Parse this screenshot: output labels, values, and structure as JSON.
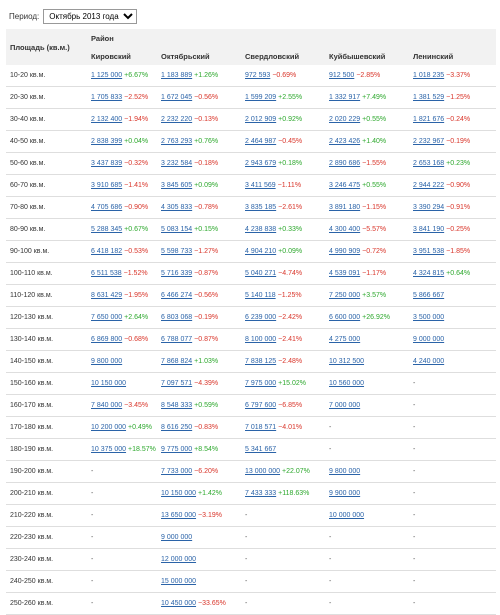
{
  "period": {
    "label": "Период:",
    "selected": "Октябрь 2013 года"
  },
  "header": {
    "area_label": "Площадь (кв.м.)",
    "district_label": "Район",
    "districts": [
      "Кировский",
      "Октябрьский",
      "Свердловский",
      "Куйбышевский",
      "Ленинский"
    ]
  },
  "rows": [
    {
      "area": "10-20 кв.м.",
      "cells": [
        {
          "p": "1 125 000",
          "c": "+6.67%",
          "d": "up"
        },
        {
          "p": "1 183 889",
          "c": "+1.26%",
          "d": "up"
        },
        {
          "p": "972 593",
          "c": "−0.69%",
          "d": "down"
        },
        {
          "p": "912 500",
          "c": "−2.85%",
          "d": "down"
        },
        {
          "p": "1 018 235",
          "c": "−3.37%",
          "d": "down"
        }
      ]
    },
    {
      "area": "20-30 кв.м.",
      "cells": [
        {
          "p": "1 705 833",
          "c": "−2.52%",
          "d": "down"
        },
        {
          "p": "1 672 045",
          "c": "−0.56%",
          "d": "down"
        },
        {
          "p": "1 599 209",
          "c": "+2.55%",
          "d": "up"
        },
        {
          "p": "1 332 917",
          "c": "+7.49%",
          "d": "up"
        },
        {
          "p": "1 381 529",
          "c": "−1.25%",
          "d": "down"
        }
      ]
    },
    {
      "area": "30-40 кв.м.",
      "cells": [
        {
          "p": "2 132 400",
          "c": "−1.94%",
          "d": "down"
        },
        {
          "p": "2 232 220",
          "c": "−0.13%",
          "d": "down"
        },
        {
          "p": "2 012 909",
          "c": "+0.92%",
          "d": "up"
        },
        {
          "p": "2 020 229",
          "c": "+0.55%",
          "d": "up"
        },
        {
          "p": "1 821 676",
          "c": "−0.24%",
          "d": "down"
        }
      ]
    },
    {
      "area": "40-50 кв.м.",
      "cells": [
        {
          "p": "2 838 399",
          "c": "+0.04%",
          "d": "up"
        },
        {
          "p": "2 763 293",
          "c": "+0.76%",
          "d": "up"
        },
        {
          "p": "2 464 987",
          "c": "−0.45%",
          "d": "down"
        },
        {
          "p": "2 423 426",
          "c": "+1.40%",
          "d": "up"
        },
        {
          "p": "2 232 967",
          "c": "−0.19%",
          "d": "down"
        }
      ]
    },
    {
      "area": "50-60 кв.м.",
      "cells": [
        {
          "p": "3 437 839",
          "c": "−0.32%",
          "d": "down"
        },
        {
          "p": "3 232 584",
          "c": "−0.18%",
          "d": "down"
        },
        {
          "p": "2 943 679",
          "c": "+0.18%",
          "d": "up"
        },
        {
          "p": "2 890 686",
          "c": "−1.55%",
          "d": "down"
        },
        {
          "p": "2 653 168",
          "c": "+0.23%",
          "d": "up"
        }
      ]
    },
    {
      "area": "60-70 кв.м.",
      "cells": [
        {
          "p": "3 910 685",
          "c": "−1.41%",
          "d": "down"
        },
        {
          "p": "3 845 605",
          "c": "+0.09%",
          "d": "up"
        },
        {
          "p": "3 411 569",
          "c": "−1.11%",
          "d": "down"
        },
        {
          "p": "3 246 475",
          "c": "+0.55%",
          "d": "up"
        },
        {
          "p": "2 944 222",
          "c": "−0.90%",
          "d": "down"
        }
      ]
    },
    {
      "area": "70-80 кв.м.",
      "cells": [
        {
          "p": "4 705 686",
          "c": "−0.90%",
          "d": "down"
        },
        {
          "p": "4 305 833",
          "c": "−0.78%",
          "d": "down"
        },
        {
          "p": "3 835 185",
          "c": "−2.61%",
          "d": "down"
        },
        {
          "p": "3 891 180",
          "c": "−1.15%",
          "d": "down"
        },
        {
          "p": "3 390 294",
          "c": "−0.91%",
          "d": "down"
        }
      ]
    },
    {
      "area": "80-90 кв.м.",
      "cells": [
        {
          "p": "5 288 345",
          "c": "+0.67%",
          "d": "up"
        },
        {
          "p": "5 083 154",
          "c": "+0.15%",
          "d": "up"
        },
        {
          "p": "4 238 838",
          "c": "+0.33%",
          "d": "up"
        },
        {
          "p": "4 300 400",
          "c": "−5.57%",
          "d": "down"
        },
        {
          "p": "3 841 190",
          "c": "−0.25%",
          "d": "down"
        }
      ]
    },
    {
      "area": "90-100 кв.м.",
      "cells": [
        {
          "p": "6 418 182",
          "c": "−0.53%",
          "d": "down"
        },
        {
          "p": "5 598 733",
          "c": "−1.27%",
          "d": "down"
        },
        {
          "p": "4 904 210",
          "c": "+0.09%",
          "d": "up"
        },
        {
          "p": "4 990 909",
          "c": "−0.72%",
          "d": "down"
        },
        {
          "p": "3 951 538",
          "c": "−1.85%",
          "d": "down"
        }
      ]
    },
    {
      "area": "100-110 кв.м.",
      "cells": [
        {
          "p": "6 511 538",
          "c": "−1.52%",
          "d": "down"
        },
        {
          "p": "5 716 339",
          "c": "−0.87%",
          "d": "down"
        },
        {
          "p": "5 040 271",
          "c": "−4.74%",
          "d": "down"
        },
        {
          "p": "4 539 091",
          "c": "−1.17%",
          "d": "down"
        },
        {
          "p": "4 324 815",
          "c": "+0.64%",
          "d": "up"
        }
      ]
    },
    {
      "area": "110-120 кв.м.",
      "cells": [
        {
          "p": "8 631 429",
          "c": "−1.95%",
          "d": "down"
        },
        {
          "p": "6 466 274",
          "c": "−0.56%",
          "d": "down"
        },
        {
          "p": "5 140 118",
          "c": "−1.25%",
          "d": "down"
        },
        {
          "p": "7 250 000",
          "c": "+3.57%",
          "d": "up"
        },
        {
          "p": "5 866 667",
          "c": "",
          "d": ""
        }
      ]
    },
    {
      "area": "120-130 кв.м.",
      "cells": [
        {
          "p": "7 650 000",
          "c": "+2.64%",
          "d": "up"
        },
        {
          "p": "6 803 068",
          "c": "−0.19%",
          "d": "down"
        },
        {
          "p": "6 239 000",
          "c": "−2.42%",
          "d": "down"
        },
        {
          "p": "6 600 000",
          "c": "+26.92%",
          "d": "up"
        },
        {
          "p": "3 500 000",
          "c": "",
          "d": ""
        }
      ]
    },
    {
      "area": "130-140 кв.м.",
      "cells": [
        {
          "p": "6 869 800",
          "c": "−0.68%",
          "d": "down"
        },
        {
          "p": "6 788 077",
          "c": "−0.87%",
          "d": "down"
        },
        {
          "p": "8 100 000",
          "c": "−2.41%",
          "d": "down"
        },
        {
          "p": "4 275 000",
          "c": "",
          "d": ""
        },
        {
          "p": "9 000 000",
          "c": "",
          "d": ""
        }
      ]
    },
    {
      "area": "140-150 кв.м.",
      "cells": [
        {
          "p": "9 800 000",
          "c": "",
          "d": ""
        },
        {
          "p": "7 868 824",
          "c": "+1.03%",
          "d": "up"
        },
        {
          "p": "7 838 125",
          "c": "−2.48%",
          "d": "down"
        },
        {
          "p": "10 312 500",
          "c": "",
          "d": ""
        },
        {
          "p": "4 240 000",
          "c": "",
          "d": ""
        }
      ]
    },
    {
      "area": "150-160 кв.м.",
      "cells": [
        {
          "p": "10 150 000",
          "c": "",
          "d": ""
        },
        {
          "p": "7 097 571",
          "c": "−4.39%",
          "d": "down"
        },
        {
          "p": "7 975 000",
          "c": "+15.02%",
          "d": "up"
        },
        {
          "p": "10 560 000",
          "c": "",
          "d": ""
        },
        {
          "p": "-",
          "c": "",
          "d": ""
        }
      ]
    },
    {
      "area": "160-170 кв.м.",
      "cells": [
        {
          "p": "7 840 000",
          "c": "−3.45%",
          "d": "down"
        },
        {
          "p": "8 548 333",
          "c": "+0.59%",
          "d": "up"
        },
        {
          "p": "6 797 600",
          "c": "−6.85%",
          "d": "down"
        },
        {
          "p": "7 000 000",
          "c": "",
          "d": ""
        },
        {
          "p": "-",
          "c": "",
          "d": ""
        }
      ]
    },
    {
      "area": "170-180 кв.м.",
      "cells": [
        {
          "p": "10 200 000",
          "c": "+0.49%",
          "d": "up"
        },
        {
          "p": "8 616 250",
          "c": "−0.83%",
          "d": "down"
        },
        {
          "p": "7 018 571",
          "c": "−4.01%",
          "d": "down"
        },
        {
          "p": "-",
          "c": "",
          "d": ""
        },
        {
          "p": "-",
          "c": "",
          "d": ""
        }
      ]
    },
    {
      "area": "180-190 кв.м.",
      "cells": [
        {
          "p": "10 375 000",
          "c": "+18.57%",
          "d": "up"
        },
        {
          "p": "9 775 000",
          "c": "+8.54%",
          "d": "up"
        },
        {
          "p": "5 341 667",
          "c": "",
          "d": ""
        },
        {
          "p": "-",
          "c": "",
          "d": ""
        },
        {
          "p": "-",
          "c": "",
          "d": ""
        }
      ]
    },
    {
      "area": "190-200 кв.м.",
      "cells": [
        {
          "p": "-",
          "c": "",
          "d": ""
        },
        {
          "p": "7 733 000",
          "c": "−6.20%",
          "d": "down"
        },
        {
          "p": "13 000 000",
          "c": "+22.07%",
          "d": "up"
        },
        {
          "p": "9 800 000",
          "c": "",
          "d": ""
        },
        {
          "p": "-",
          "c": "",
          "d": ""
        }
      ]
    },
    {
      "area": "200-210 кв.м.",
      "cells": [
        {
          "p": "-",
          "c": "",
          "d": ""
        },
        {
          "p": "10 150 000",
          "c": "+1.42%",
          "d": "up"
        },
        {
          "p": "7 433 333",
          "c": "+118.63%",
          "d": "up"
        },
        {
          "p": "9 900 000",
          "c": "",
          "d": ""
        },
        {
          "p": "-",
          "c": "",
          "d": ""
        }
      ]
    },
    {
      "area": "210-220 кв.м.",
      "cells": [
        {
          "p": "-",
          "c": "",
          "d": ""
        },
        {
          "p": "13 650 000",
          "c": "−3.19%",
          "d": "down"
        },
        {
          "p": "-",
          "c": "",
          "d": ""
        },
        {
          "p": "10 000 000",
          "c": "",
          "d": ""
        },
        {
          "p": "-",
          "c": "",
          "d": ""
        }
      ]
    },
    {
      "area": "220-230 кв.м.",
      "cells": [
        {
          "p": "-",
          "c": "",
          "d": ""
        },
        {
          "p": "9 000 000",
          "c": "",
          "d": ""
        },
        {
          "p": "-",
          "c": "",
          "d": ""
        },
        {
          "p": "-",
          "c": "",
          "d": ""
        },
        {
          "p": "-",
          "c": "",
          "d": ""
        }
      ]
    },
    {
      "area": "230-240 кв.м.",
      "cells": [
        {
          "p": "-",
          "c": "",
          "d": ""
        },
        {
          "p": "12 000 000",
          "c": "",
          "d": ""
        },
        {
          "p": "-",
          "c": "",
          "d": ""
        },
        {
          "p": "-",
          "c": "",
          "d": ""
        },
        {
          "p": "-",
          "c": "",
          "d": ""
        }
      ]
    },
    {
      "area": "240-250 кв.м.",
      "cells": [
        {
          "p": "-",
          "c": "",
          "d": ""
        },
        {
          "p": "15 000 000",
          "c": "",
          "d": ""
        },
        {
          "p": "-",
          "c": "",
          "d": ""
        },
        {
          "p": "-",
          "c": "",
          "d": ""
        },
        {
          "p": "-",
          "c": "",
          "d": ""
        }
      ]
    },
    {
      "area": "250-260 кв.м.",
      "cells": [
        {
          "p": "-",
          "c": "",
          "d": ""
        },
        {
          "p": "10 450 000",
          "c": "−33.65%",
          "d": "down"
        },
        {
          "p": "-",
          "c": "",
          "d": ""
        },
        {
          "p": "-",
          "c": "",
          "d": ""
        },
        {
          "p": "-",
          "c": "",
          "d": ""
        }
      ]
    }
  ],
  "colors": {
    "link": "#2a63a8",
    "up": "#2da82d",
    "down": "#d9352a",
    "header_bg": "#f2f2f2"
  }
}
